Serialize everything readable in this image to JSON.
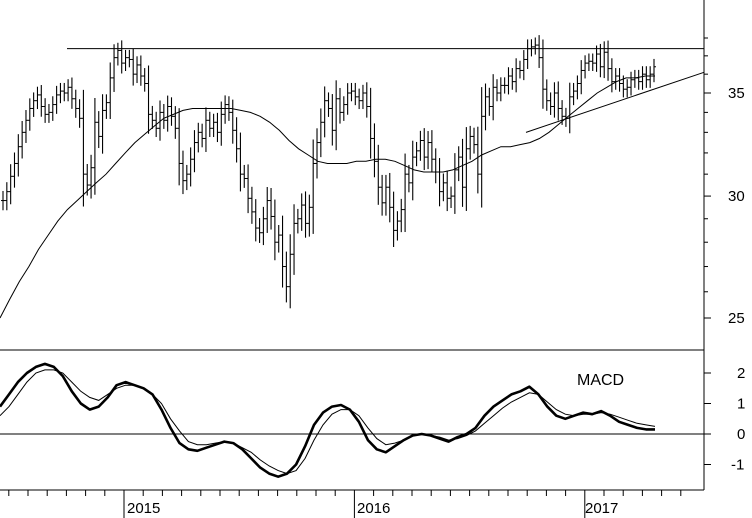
{
  "chart_data": [
    {
      "type": "ohlc",
      "price_axis": {
        "ticks": [
          25,
          30,
          35
        ],
        "tick_labels": [
          "25",
          "30",
          "35"
        ],
        "scale": "log"
      },
      "ylim": [
        23.0,
        39.5
      ],
      "x_axis": {
        "tick_labels": [
          "2015",
          "2016",
          "2017"
        ]
      },
      "resistance_line": {
        "value": 37.4
      },
      "support_trendline": {
        "from": {
          "x": "2016-09",
          "y": 33.0
        },
        "to": {
          "x": "2017-05",
          "y": 36.1
        }
      },
      "series": [
        {
          "type": "bar",
          "weekly_closes": [
            29.8,
            30.2,
            30.9,
            31.5,
            32.3,
            33.0,
            33.6,
            34.2,
            34.6,
            34.9,
            34.3,
            33.9,
            34.0,
            34.4,
            34.9,
            35.1,
            35.0,
            35.3,
            34.7,
            34.2,
            33.7,
            31.0,
            30.5,
            31.3,
            33.5,
            32.8,
            34.1,
            34.5,
            35.8,
            36.9,
            37.3,
            36.6,
            36.9,
            36.8,
            36.0,
            36.5,
            35.9,
            35.5,
            33.9,
            33.6,
            33.2,
            34.0,
            33.6,
            34.3,
            33.8,
            33.2,
            31.5,
            30.7,
            31.0,
            31.7,
            32.5,
            33.0,
            32.7,
            33.6,
            33.2,
            33.5,
            33.0,
            33.9,
            34.4,
            34.0,
            33.1,
            32.2,
            31.0,
            30.8,
            29.9,
            29.3,
            28.6,
            28.4,
            29.0,
            29.8,
            29.1,
            28.0,
            28.3,
            27.0,
            26.2,
            27.5,
            28.8,
            29.0,
            29.6,
            28.8,
            29.5,
            31.5,
            32.5,
            33.5,
            34.6,
            34.2,
            33.1,
            34.7,
            34.0,
            34.4,
            35.0,
            35.1,
            34.8,
            34.6,
            35.0,
            34.3,
            32.7,
            31.6,
            30.4,
            29.7,
            30.4,
            29.5,
            28.5,
            28.9,
            29.4,
            31.0,
            30.6,
            31.8,
            32.1,
            32.6,
            31.8,
            32.5,
            31.7,
            31.1,
            30.2,
            30.6,
            29.9,
            30.0,
            31.2,
            31.8,
            30.4,
            32.2,
            32.8,
            32.4,
            31.0,
            33.8,
            34.8,
            34.3,
            35.3,
            35.0,
            35.4,
            35.4,
            35.9,
            35.6,
            36.3,
            36.2,
            36.8,
            37.4,
            37.5,
            37.6,
            36.9,
            35.2,
            34.6,
            34.3,
            35.0,
            34.2,
            33.8,
            33.7,
            34.8,
            35.1,
            35.5,
            36.2,
            36.6,
            36.7,
            36.6,
            37.1,
            36.4,
            37.2,
            36.3,
            35.6,
            35.9,
            35.5,
            35.2,
            35.3,
            35.7,
            35.8,
            35.6,
            36.0,
            35.7,
            36.0,
            36.4
          ],
          "moving_average_40w": [
            25.0,
            25.7,
            26.4,
            27.0,
            27.7,
            28.3,
            28.9,
            29.4,
            29.8,
            30.2,
            30.6,
            31.0,
            31.5,
            32.0,
            32.5,
            32.9,
            33.3,
            33.7,
            33.9,
            34.1,
            34.2,
            34.2,
            34.2,
            34.2,
            34.2,
            34.1,
            34.0,
            33.8,
            33.5,
            33.1,
            32.6,
            32.2,
            31.9,
            31.6,
            31.5,
            31.5,
            31.5,
            31.6,
            31.6,
            31.7,
            31.7,
            31.6,
            31.4,
            31.2,
            31.1,
            31.1,
            31.1,
            31.2,
            31.4,
            31.6,
            31.9,
            32.1,
            32.3,
            32.3,
            32.4,
            32.5,
            32.7,
            33.0,
            33.4,
            33.8,
            34.2,
            34.6,
            35.0,
            35.3,
            35.6,
            35.8,
            35.8,
            35.9,
            35.9
          ]
        }
      ],
      "macd_panel": {
        "title": "MACD",
        "yticks": [
          -1,
          0,
          1,
          2
        ],
        "ylim": [
          -1.5,
          2.6
        ],
        "macd": [
          0.9,
          1.3,
          1.7,
          2.0,
          2.2,
          2.3,
          2.2,
          1.9,
          1.4,
          1.0,
          0.8,
          0.9,
          1.2,
          1.6,
          1.7,
          1.6,
          1.5,
          1.3,
          0.8,
          0.2,
          -0.3,
          -0.5,
          -0.55,
          -0.45,
          -0.35,
          -0.25,
          -0.3,
          -0.5,
          -0.8,
          -1.1,
          -1.3,
          -1.4,
          -1.3,
          -1.0,
          -0.4,
          0.3,
          0.7,
          0.9,
          0.95,
          0.8,
          0.4,
          -0.2,
          -0.5,
          -0.6,
          -0.4,
          -0.2,
          -0.05,
          0.0,
          -0.05,
          -0.15,
          -0.25,
          -0.1,
          0.0,
          0.2,
          0.6,
          0.9,
          1.1,
          1.3,
          1.4,
          1.55,
          1.3,
          0.9,
          0.6,
          0.5,
          0.6,
          0.7,
          0.65,
          0.75,
          0.6,
          0.4,
          0.3,
          0.2,
          0.15,
          0.15
        ],
        "signal": [
          0.6,
          0.9,
          1.3,
          1.7,
          2.0,
          2.1,
          2.1,
          2.0,
          1.7,
          1.4,
          1.2,
          1.1,
          1.3,
          1.5,
          1.6,
          1.6,
          1.5,
          1.3,
          1.0,
          0.5,
          0.1,
          -0.25,
          -0.35,
          -0.35,
          -0.3,
          -0.25,
          -0.3,
          -0.45,
          -0.6,
          -0.85,
          -1.05,
          -1.2,
          -1.3,
          -1.2,
          -0.8,
          -0.2,
          0.3,
          0.65,
          0.8,
          0.8,
          0.6,
          0.2,
          -0.15,
          -0.35,
          -0.3,
          -0.2,
          -0.05,
          0.0,
          -0.05,
          -0.1,
          -0.2,
          -0.15,
          -0.05,
          0.1,
          0.35,
          0.6,
          0.85,
          1.05,
          1.2,
          1.35,
          1.3,
          1.05,
          0.8,
          0.65,
          0.6,
          0.65,
          0.65,
          0.7,
          0.65,
          0.55,
          0.45,
          0.35,
          0.3,
          0.25
        ]
      }
    }
  ],
  "colors": {
    "line": "#000000",
    "background": "#ffffff"
  }
}
